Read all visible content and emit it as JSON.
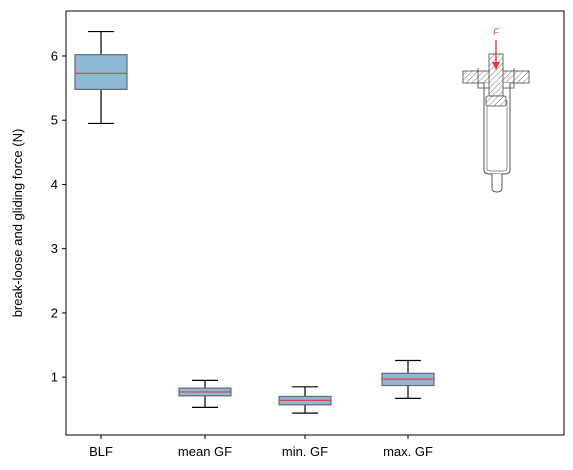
{
  "chart_data": {
    "type": "box",
    "title": "",
    "xlabel": "",
    "ylabel": "break-loose and gliding force (N)",
    "ylim": [
      0.1,
      6.7
    ],
    "yticks": [
      1,
      2,
      3,
      4,
      5,
      6
    ],
    "categories": [
      "BLF",
      "mean GF",
      "min. GF",
      "max. GF"
    ],
    "boxes": [
      {
        "category": "BLF",
        "whisker_low": 4.95,
        "q1": 5.48,
        "median": 5.73,
        "q3": 6.02,
        "whisker_high": 6.38
      },
      {
        "category": "mean GF",
        "whisker_low": 0.53,
        "q1": 0.71,
        "median": 0.77,
        "q3": 0.83,
        "whisker_high": 0.95
      },
      {
        "category": "min. GF",
        "whisker_low": 0.44,
        "q1": 0.57,
        "median": 0.64,
        "q3": 0.7,
        "whisker_high": 0.85
      },
      {
        "category": "max. GF",
        "whisker_low": 0.67,
        "q1": 0.87,
        "median": 0.97,
        "q3": 1.06,
        "whisker_high": 1.26
      }
    ],
    "grid": false,
    "legend": "none",
    "colors": {
      "box_fill": "#8fb7d6",
      "box_edge": "#5f6b78",
      "median": "#e8383a",
      "whisker": "#000000",
      "axis": "#000000"
    },
    "inset": {
      "description_icon": "syringe-cross-section-icon",
      "force_label": "F",
      "force_color": "#e8383a"
    }
  }
}
